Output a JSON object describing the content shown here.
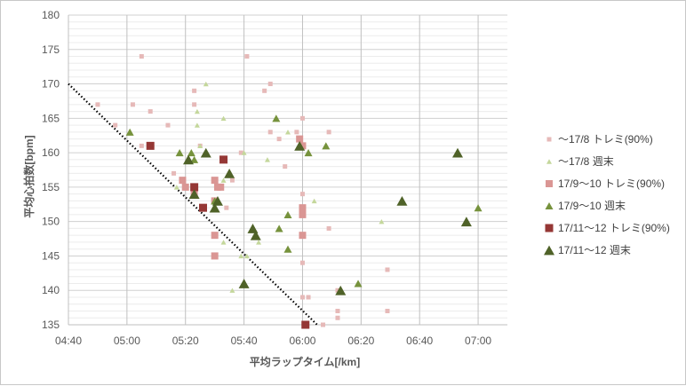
{
  "chart_data": {
    "type": "scatter",
    "title": "",
    "xlabel": "平均ラップタイム[/km]",
    "ylabel": "平均心拍数[bpm]",
    "xlim": [
      280,
      430
    ],
    "ylim": [
      135,
      180
    ],
    "x_ticks": [
      280,
      300,
      320,
      340,
      360,
      380,
      400,
      420
    ],
    "x_tick_labels": [
      "04:40",
      "05:00",
      "05:20",
      "05:40",
      "06:00",
      "06:20",
      "06:40",
      "07:00"
    ],
    "y_ticks": [
      135,
      140,
      145,
      150,
      155,
      160,
      165,
      170,
      175,
      180
    ],
    "y_tick_labels": [
      "135",
      "140",
      "145",
      "150",
      "155",
      "160",
      "165",
      "170",
      "175",
      "180"
    ],
    "x_unit": "seconds per km",
    "grid": {
      "major_x": true,
      "major_y": true,
      "minor_y": true
    },
    "legend_position": "right",
    "trendline": {
      "style": "dotted",
      "color": "#000000",
      "points": [
        [
          280,
          170
        ],
        [
          365,
          135
        ]
      ]
    },
    "series": [
      {
        "name": "〜17/8 トレミ(90%)",
        "marker": "square",
        "size": "small",
        "color": "#e6b9b8",
        "points": [
          [
            290,
            167
          ],
          [
            296,
            164
          ],
          [
            302,
            167
          ],
          [
            305,
            174
          ],
          [
            305,
            161
          ],
          [
            308,
            166
          ],
          [
            314,
            164
          ],
          [
            316,
            157
          ],
          [
            323,
            169
          ],
          [
            323,
            167
          ],
          [
            325,
            161
          ],
          [
            339,
            160
          ],
          [
            341,
            174
          ],
          [
            347,
            169
          ],
          [
            349,
            170
          ],
          [
            349,
            163
          ],
          [
            352,
            162
          ],
          [
            354,
            158
          ],
          [
            358,
            163
          ],
          [
            359,
            162
          ],
          [
            360,
            165
          ],
          [
            360,
            154
          ],
          [
            360,
            152
          ],
          [
            360,
            144
          ],
          [
            360,
            139
          ],
          [
            362,
            139
          ],
          [
            367,
            135
          ],
          [
            369,
            149
          ],
          [
            369,
            163
          ],
          [
            372,
            140
          ],
          [
            372,
            137
          ],
          [
            372,
            136
          ],
          [
            389,
            143
          ],
          [
            389,
            137
          ],
          [
            336,
            156
          ],
          [
            334,
            152
          ]
        ]
      },
      {
        "name": "〜17/8 週末",
        "marker": "triangle",
        "size": "small",
        "color": "#c4d79b",
        "points": [
          [
            324,
            166
          ],
          [
            324,
            164
          ],
          [
            327,
            170
          ],
          [
            333,
            165
          ],
          [
            336,
            140
          ],
          [
            339,
            145
          ],
          [
            340,
            160
          ],
          [
            345,
            147
          ],
          [
            348,
            159
          ],
          [
            355,
            163
          ],
          [
            325,
            161
          ],
          [
            364,
            153
          ],
          [
            387,
            150
          ],
          [
            317,
            155
          ],
          [
            333,
            147
          ],
          [
            333,
            156
          ],
          [
            341,
            145
          ]
        ]
      },
      {
        "name": "17/9〜10 トレミ(90%)",
        "marker": "square",
        "size": "medium",
        "color": "#da9694",
        "points": [
          [
            319,
            156
          ],
          [
            320,
            155
          ],
          [
            330,
            156
          ],
          [
            331,
            155
          ],
          [
            332,
            155
          ],
          [
            330,
            148
          ],
          [
            330,
            145
          ],
          [
            360,
            161
          ],
          [
            360,
            152
          ],
          [
            360,
            151
          ],
          [
            360,
            148
          ],
          [
            359,
            162
          ],
          [
            330,
            153
          ],
          [
            323,
            154
          ]
        ]
      },
      {
        "name": "17/9〜10 週末",
        "marker": "triangle",
        "size": "medium",
        "color": "#76923c",
        "points": [
          [
            301,
            163
          ],
          [
            318,
            160
          ],
          [
            323,
            159
          ],
          [
            327,
            160
          ],
          [
            330,
            153
          ],
          [
            351,
            165
          ],
          [
            352,
            149
          ],
          [
            355,
            151
          ],
          [
            355,
            146
          ],
          [
            362,
            160
          ],
          [
            368,
            161
          ],
          [
            379,
            141
          ],
          [
            420,
            152
          ],
          [
            322,
            160
          ]
        ]
      },
      {
        "name": "17/11〜12 トレミ(90%)",
        "marker": "square",
        "size": "large",
        "color": "#953735",
        "points": [
          [
            308,
            161
          ],
          [
            323,
            155
          ],
          [
            326,
            152
          ],
          [
            333,
            159
          ],
          [
            361,
            135
          ]
        ]
      },
      {
        "name": "17/11〜12 週末",
        "marker": "triangle",
        "size": "large",
        "color": "#4f6228",
        "points": [
          [
            321,
            159
          ],
          [
            323,
            154
          ],
          [
            327,
            160
          ],
          [
            330,
            152
          ],
          [
            331,
            153
          ],
          [
            335,
            157
          ],
          [
            343,
            149
          ],
          [
            344,
            148
          ],
          [
            359,
            161
          ],
          [
            373,
            140
          ],
          [
            394,
            153
          ],
          [
            413,
            160
          ],
          [
            416,
            150
          ],
          [
            340,
            141
          ]
        ]
      }
    ]
  }
}
